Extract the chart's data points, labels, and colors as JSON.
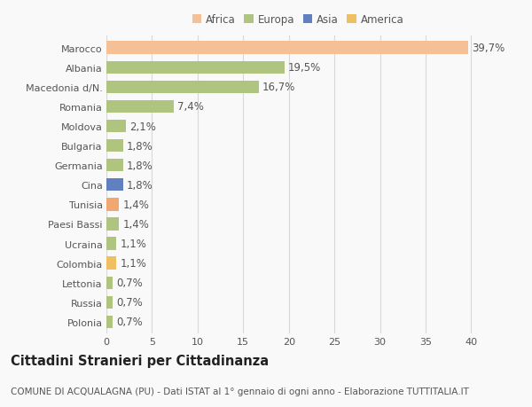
{
  "categories": [
    "Polonia",
    "Russia",
    "Lettonia",
    "Colombia",
    "Ucraina",
    "Paesi Bassi",
    "Tunisia",
    "Cina",
    "Germania",
    "Bulgaria",
    "Moldova",
    "Romania",
    "Macedonia d/N.",
    "Albania",
    "Marocco"
  ],
  "values": [
    0.7,
    0.7,
    0.7,
    1.1,
    1.1,
    1.4,
    1.4,
    1.8,
    1.8,
    1.8,
    2.1,
    7.4,
    16.7,
    19.5,
    39.7
  ],
  "labels": [
    "0,7%",
    "0,7%",
    "0,7%",
    "1,1%",
    "1,1%",
    "1,4%",
    "1,4%",
    "1,8%",
    "1,8%",
    "1,8%",
    "2,1%",
    "7,4%",
    "16,7%",
    "19,5%",
    "39,7%"
  ],
  "colors": [
    "#aec47f",
    "#aec47f",
    "#aec47f",
    "#f0c060",
    "#aec47f",
    "#aec47f",
    "#f0a870",
    "#6080c0",
    "#aec47f",
    "#aec47f",
    "#aec47f",
    "#aec47f",
    "#aec47f",
    "#aec47f",
    "#f5c096"
  ],
  "legend_labels": [
    "Africa",
    "Europa",
    "Asia",
    "America"
  ],
  "legend_colors": [
    "#f5c096",
    "#aec47f",
    "#6080c0",
    "#f0c060"
  ],
  "title": "Cittadini Stranieri per Cittadinanza",
  "subtitle": "COMUNE DI ACQUALAGNA (PU) - Dati ISTAT al 1° gennaio di ogni anno - Elaborazione TUTTITALIA.IT",
  "xlim": [
    0,
    42
  ],
  "xticks": [
    0,
    5,
    10,
    15,
    20,
    25,
    30,
    35,
    40
  ],
  "background_color": "#f9f9f9",
  "bar_height": 0.65,
  "grid_color": "#d8d8d8",
  "text_color": "#555555",
  "label_fontsize": 8.5,
  "tick_fontsize": 8.0,
  "title_fontsize": 10.5,
  "subtitle_fontsize": 7.5
}
